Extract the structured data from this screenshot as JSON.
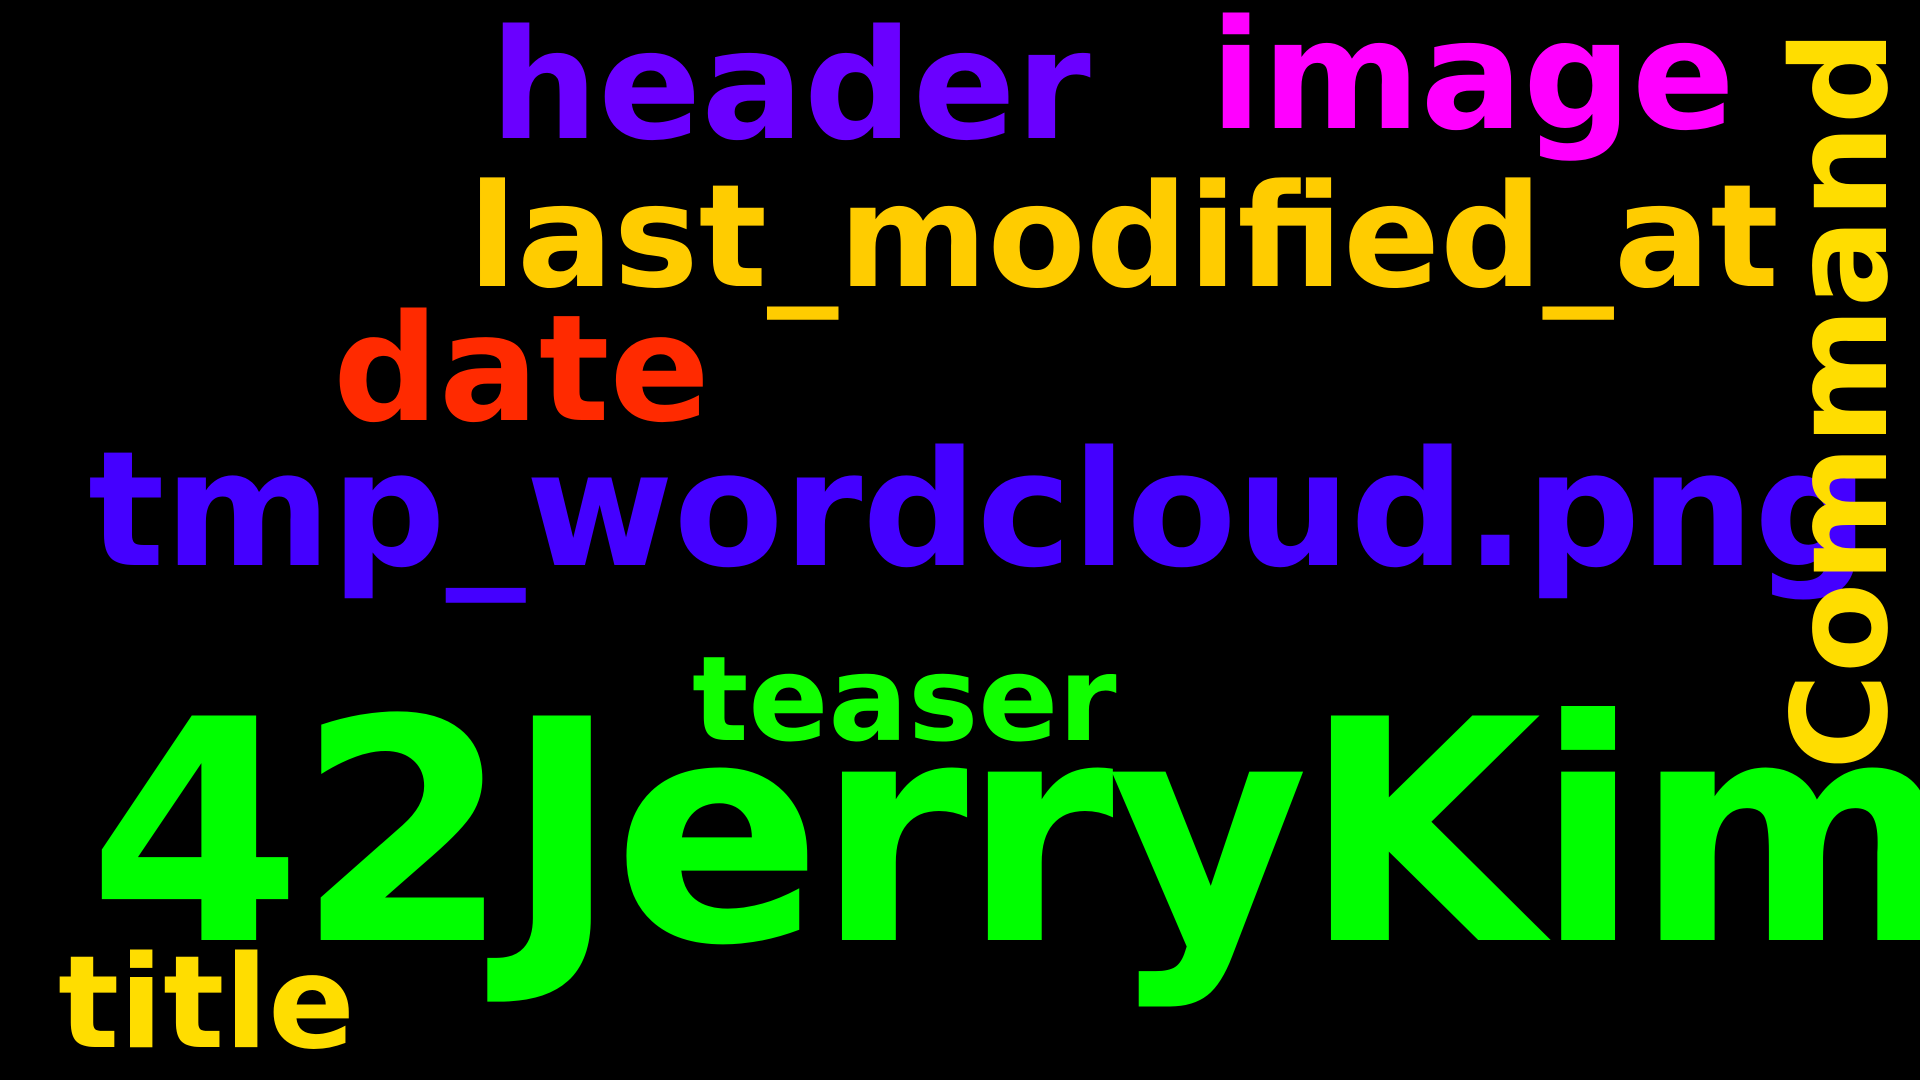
{
  "words": [
    {
      "key": "header",
      "text": "header",
      "color": "#6a00ff"
    },
    {
      "key": "image",
      "text": "image",
      "color": "#ff00ff"
    },
    {
      "key": "last_modified_at",
      "text": "last_modified_at",
      "color": "#ffcc00"
    },
    {
      "key": "date",
      "text": "date",
      "color": "#ff2a00"
    },
    {
      "key": "tmp",
      "text": "tmp_wordcloud.png",
      "color": "#4400ff"
    },
    {
      "key": "teaser",
      "text": "teaser",
      "color": "#11ff00"
    },
    {
      "key": "main",
      "text": "42JerryKim",
      "color": "#00ff00"
    },
    {
      "key": "title",
      "text": "title",
      "color": "#ffdd00"
    },
    {
      "key": "command",
      "text": "Command",
      "color": "#ffdd00",
      "orientation": "vertical"
    }
  ]
}
